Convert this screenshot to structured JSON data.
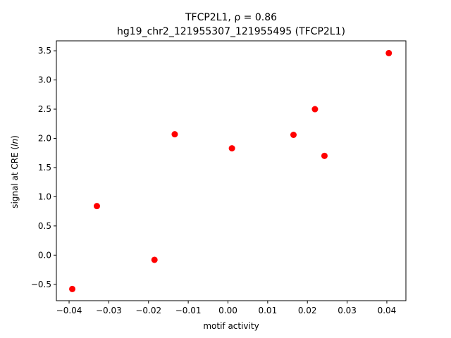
{
  "chart_data": {
    "type": "scatter",
    "title_line1": "TFCP2L1, ρ = 0.86",
    "title_line2": "hg19_chr2_121955307_121955495 (TFCP2L1)",
    "xlabel": "motif activity",
    "ylabel_prefix": "signal at CRE (",
    "ylabel_italic": "ln",
    "ylabel_suffix": ")",
    "xlim": [
      -0.0432,
      0.0448
    ],
    "ylim": [
      -0.78,
      3.67
    ],
    "xticks": [
      -0.04,
      -0.03,
      -0.02,
      -0.01,
      0.0,
      0.01,
      0.02,
      0.03,
      0.04
    ],
    "xtick_labels": [
      "−0.04",
      "−0.03",
      "−0.02",
      "−0.01",
      "0.00",
      "0.01",
      "0.02",
      "0.03",
      "0.04"
    ],
    "yticks": [
      -0.5,
      0.0,
      0.5,
      1.0,
      1.5,
      2.0,
      2.5,
      3.0,
      3.5
    ],
    "ytick_labels": [
      "−0.5",
      "0.0",
      "0.5",
      "1.0",
      "1.5",
      "2.0",
      "2.5",
      "3.0",
      "3.5"
    ],
    "marker_color": "#ff0000",
    "grid": false,
    "points": [
      {
        "x": -0.0392,
        "y": -0.58
      },
      {
        "x": -0.033,
        "y": 0.84
      },
      {
        "x": -0.0185,
        "y": -0.08
      },
      {
        "x": -0.0134,
        "y": 2.07
      },
      {
        "x": 0.001,
        "y": 1.83
      },
      {
        "x": 0.0165,
        "y": 2.06
      },
      {
        "x": 0.0219,
        "y": 2.5
      },
      {
        "x": 0.0243,
        "y": 1.7
      },
      {
        "x": 0.0405,
        "y": 3.46
      }
    ]
  }
}
